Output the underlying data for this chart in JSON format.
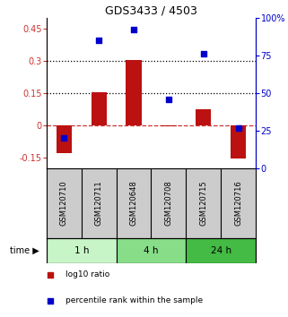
{
  "title": "GDS3433 / 4503",
  "samples": [
    "GSM120710",
    "GSM120711",
    "GSM120648",
    "GSM120708",
    "GSM120715",
    "GSM120716"
  ],
  "log10_ratio": [
    -0.13,
    0.155,
    0.305,
    -0.005,
    0.075,
    -0.155
  ],
  "percentile_rank": [
    20,
    85,
    92,
    46,
    76,
    27
  ],
  "time_groups": [
    {
      "label": "1 h",
      "start": 0,
      "end": 2,
      "color": "#c8f5c8"
    },
    {
      "label": "4 h",
      "start": 2,
      "end": 4,
      "color": "#88dd88"
    },
    {
      "label": "24 h",
      "start": 4,
      "end": 6,
      "color": "#44bb44"
    }
  ],
  "bar_color": "#bb1111",
  "dot_color": "#0000cc",
  "left_ylim": [
    -0.2,
    0.5
  ],
  "right_ylim": [
    0,
    100
  ],
  "left_yticks": [
    -0.15,
    0.0,
    0.15,
    0.3,
    0.45
  ],
  "right_yticks": [
    0,
    25,
    50,
    75,
    100
  ],
  "right_yticklabels": [
    "0",
    "25",
    "50",
    "75",
    "100%"
  ],
  "hlines": [
    0.0,
    0.15,
    0.3
  ],
  "hline_styles": [
    "dashed",
    "dotted",
    "dotted"
  ],
  "hline_colors": [
    "#cc3333",
    "#000000",
    "#000000"
  ],
  "background_color": "#ffffff",
  "sample_box_color": "#cccccc",
  "legend_items": [
    {
      "label": "log10 ratio",
      "color": "#bb1111"
    },
    {
      "label": "percentile rank within the sample",
      "color": "#0000cc"
    }
  ]
}
